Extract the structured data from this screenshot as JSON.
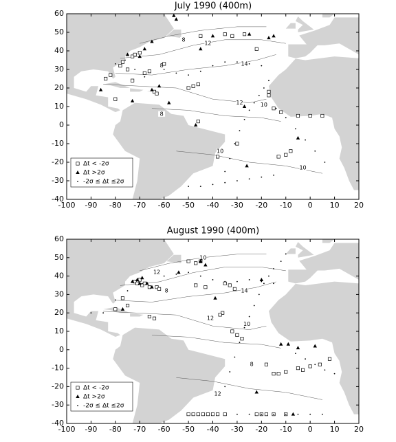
{
  "chart_data": [
    {
      "type": "scatter",
      "title": "July 1990 (400m)",
      "xlim": [
        -100,
        20
      ],
      "ylim": [
        -40,
        60
      ],
      "xticks": [
        -100,
        -90,
        -80,
        -70,
        -60,
        -50,
        -40,
        -30,
        -20,
        -10,
        0,
        10,
        20
      ],
      "yticks": [
        -40,
        -30,
        -20,
        -10,
        0,
        10,
        20,
        30,
        40,
        50,
        60
      ],
      "legend": "lower left",
      "series": [
        {
          "name": "Δt < -2σ",
          "marker": "square",
          "x": [
            -73,
            -72,
            -70,
            -78,
            -77,
            -75,
            -82,
            -84,
            -73,
            -64,
            -63,
            -50,
            -48,
            -46,
            -17,
            -17,
            -15,
            -12,
            -5,
            0,
            5,
            -8,
            -10,
            -13,
            -38,
            -30,
            -45,
            -35,
            -32,
            -27,
            -22,
            -46,
            -60,
            -80,
            -68,
            -66
          ],
          "y": [
            37,
            38,
            39,
            32,
            34,
            30,
            27,
            25,
            24,
            18,
            17,
            20,
            21,
            22,
            18,
            16,
            9,
            7,
            5,
            5,
            5,
            -14,
            -16,
            -17,
            -17,
            -10,
            48,
            49,
            48,
            49,
            41,
            2,
            33,
            14,
            28,
            29
          ]
        },
        {
          "name": "Δt >2σ",
          "marker": "triangle",
          "x": [
            -75,
            -70,
            -65,
            -55,
            -56,
            -17,
            -15,
            -25,
            -45,
            -62,
            -65,
            -58,
            -73,
            -27,
            -26,
            -47,
            -86,
            -5,
            -68,
            -40
          ],
          "y": [
            38,
            37,
            45,
            57,
            59,
            47,
            48,
            49,
            41,
            21,
            19,
            12,
            13,
            10,
            -22,
            0,
            19,
            -7,
            41,
            48
          ]
        },
        {
          "name": "-2σ ≤ Δt ≤2σ",
          "marker": "dot",
          "x": [
            -35,
            -33,
            -31,
            -29,
            -27,
            -25,
            -23,
            -21,
            -19,
            -17,
            -14,
            -10,
            -6,
            -2,
            2,
            6,
            -60,
            -55,
            -50,
            -45,
            -40,
            -35,
            -30,
            -25,
            -20,
            -50,
            -45,
            -40,
            -35,
            -30,
            -25,
            -20,
            -15,
            -80,
            -76,
            -72,
            -68
          ],
          "y": [
            -25,
            -18,
            -10,
            -3,
            3,
            8,
            12,
            16,
            20,
            24,
            9,
            4,
            -2,
            -8,
            -14,
            -20,
            30,
            28,
            27,
            29,
            32,
            34,
            34,
            33,
            32,
            -33,
            -33,
            -32,
            -31,
            -30,
            -29,
            -28,
            -27,
            33,
            35,
            30,
            26
          ]
        }
      ],
      "contour_labels": [
        {
          "value": 12,
          "x": -29,
          "y": 12
        },
        {
          "value": 10,
          "x": -19,
          "y": 11
        },
        {
          "value": 14,
          "x": -27,
          "y": 33
        },
        {
          "value": 12,
          "x": -42,
          "y": 44
        },
        {
          "value": 8,
          "x": -52,
          "y": 46
        },
        {
          "value": 8,
          "x": -61,
          "y": 6
        },
        {
          "value": 8,
          "x": -61,
          "y": 32
        },
        {
          "value": 10,
          "x": -3,
          "y": -23
        },
        {
          "value": 10,
          "x": -37,
          "y": -14
        }
      ]
    },
    {
      "type": "scatter",
      "title": "August 1990 (400m)",
      "xlim": [
        -100,
        20
      ],
      "ylim": [
        -40,
        60
      ],
      "xticks": [
        -100,
        -90,
        -80,
        -70,
        -60,
        -50,
        -40,
        -30,
        -20,
        -10,
        0,
        10,
        20
      ],
      "yticks": [
        -40,
        -30,
        -20,
        -10,
        0,
        10,
        20,
        30,
        40,
        50,
        60
      ],
      "legend": "lower left",
      "series": [
        {
          "name": "Δt < -2σ",
          "marker": "square",
          "x": [
            -72,
            -71,
            -70,
            -69,
            -68,
            -66,
            -63,
            -62,
            -77,
            -80,
            -75,
            -66,
            -64,
            -50,
            -47,
            -45,
            -35,
            -33,
            -31,
            -36,
            -37,
            -32,
            -30,
            -28,
            -18,
            -15,
            -13,
            -10,
            -5,
            -3,
            0,
            4,
            8,
            -50,
            -48,
            -46,
            -44,
            -42,
            -40,
            -38,
            -35,
            -22,
            -20,
            -18,
            -15,
            -10,
            -47,
            -43
          ],
          "y": [
            37,
            36,
            38,
            35,
            36,
            34,
            34,
            33,
            28,
            22,
            24,
            18,
            17,
            48,
            47,
            48,
            36,
            35,
            33,
            20,
            19,
            10,
            8,
            6,
            -8,
            -13,
            -13,
            -12,
            -10,
            -11,
            -9,
            -8,
            -5,
            -35,
            -35,
            -35,
            -35,
            -35,
            -35,
            -35,
            -35,
            -35,
            -35,
            -35,
            -35,
            -35,
            35,
            34
          ]
        },
        {
          "name": "Δt >2σ",
          "marker": "triangle",
          "x": [
            -73,
            -71,
            -70,
            -69,
            -67,
            -65,
            -45,
            -43,
            -20,
            -12,
            -9,
            -5,
            2,
            -39,
            -22,
            -7,
            -77,
            -54
          ],
          "y": [
            37,
            38,
            36,
            39,
            36,
            34,
            48,
            46,
            38,
            3,
            3,
            1,
            2,
            28,
            -23,
            -35,
            22,
            42
          ]
        },
        {
          "name": "-2σ ≤ Δt ≤2σ",
          "marker": "dot",
          "x": [
            -35,
            -33,
            -31,
            -29,
            -27,
            -25,
            -23,
            -21,
            -19,
            -17,
            -15,
            -12,
            -10,
            -6,
            -2,
            2,
            6,
            10,
            -60,
            -55,
            -50,
            -45,
            -40,
            -35,
            -30,
            -25,
            -20,
            -15,
            -90,
            -85,
            -80,
            -75,
            -30,
            -25,
            -20,
            -15,
            -10,
            -5,
            0,
            5
          ],
          "y": [
            -20,
            -12,
            -4,
            4,
            12,
            18,
            24,
            30,
            36,
            40,
            44,
            48,
            52,
            -2,
            -5,
            -8,
            -11,
            -13,
            40,
            41,
            42,
            40,
            38,
            37,
            37,
            38,
            37,
            36,
            20,
            20,
            27,
            32,
            -35,
            -35,
            -35,
            -35,
            -35,
            -35,
            -35,
            -35
          ]
        }
      ],
      "contour_labels": [
        {
          "value": 10,
          "x": -44,
          "y": 50
        },
        {
          "value": 12,
          "x": -63,
          "y": 42
        },
        {
          "value": 14,
          "x": -27,
          "y": 32
        },
        {
          "value": 12,
          "x": -41,
          "y": 17
        },
        {
          "value": 10,
          "x": -26,
          "y": 14
        },
        {
          "value": 8,
          "x": -24,
          "y": -8
        },
        {
          "value": 12,
          "x": -38,
          "y": -24
        },
        {
          "value": 8,
          "x": -59,
          "y": 32
        }
      ]
    }
  ]
}
